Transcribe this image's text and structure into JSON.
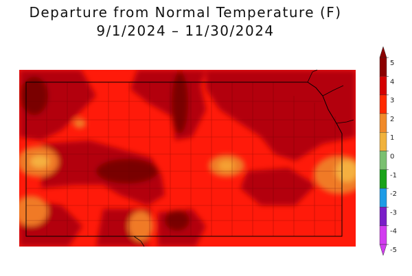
{
  "title_line1": "Departure from Normal Temperature (F)",
  "title_line2": "9/1/2024 – 11/30/2024",
  "legend": {
    "labels": [
      "5",
      "4",
      "3",
      "2",
      "1",
      "0",
      "-1",
      "-2",
      "-3",
      "-4",
      "-5"
    ],
    "colors": [
      "#8b0000",
      "#d40000",
      "#ff2a00",
      "#f08a2a",
      "#f0b23c",
      "#e6e61e",
      "#7ac070",
      "#19a319",
      "#1e9ce6",
      "#7a1ec8",
      "#d23cf0"
    ]
  },
  "palette": {
    "dark_red": "#b3000c",
    "red": "#ff1a0a",
    "mid_red": "#d41010",
    "orange": "#f07a28",
    "light_orange": "#f5a030",
    "yellow": "#e8d040"
  }
}
